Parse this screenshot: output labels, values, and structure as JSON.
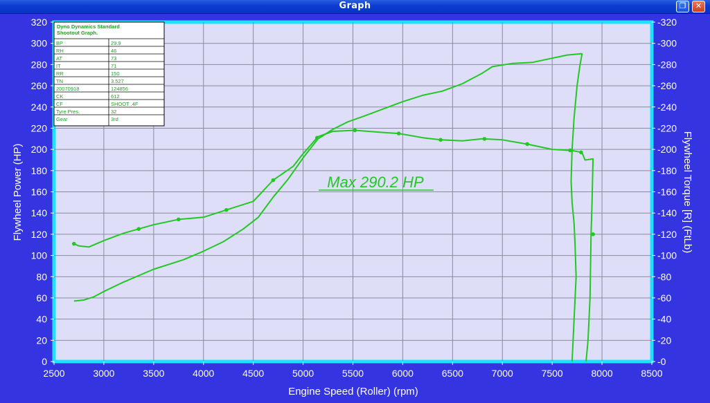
{
  "window": {
    "title": "Graph"
  },
  "chart_data": {
    "type": "line",
    "xlabel": "Engine Speed (Roller) (rpm)",
    "ylabel": "Flywheel Power (HP)",
    "y2label": "Flywheel Torque [R] (FtLb)",
    "xlim": [
      2500,
      8500
    ],
    "ylim": [
      0,
      320
    ],
    "y2lim": [
      0,
      320
    ],
    "xticks": [
      2500,
      3000,
      3500,
      4000,
      4500,
      5000,
      5500,
      6000,
      6500,
      7000,
      7500,
      8000,
      8500
    ],
    "yticks": [
      0,
      20,
      40,
      60,
      80,
      100,
      120,
      140,
      160,
      180,
      200,
      220,
      240,
      260,
      280,
      300,
      320
    ],
    "grid": true,
    "annotation": "Max 290.2 HP",
    "line_color": "#22c822",
    "series": [
      {
        "points": [
          [
            2700,
            57
          ],
          [
            2800,
            58
          ],
          [
            2900,
            61
          ],
          [
            3000,
            66
          ],
          [
            3200,
            75
          ],
          [
            3500,
            87
          ],
          [
            3800,
            96
          ],
          [
            4000,
            104
          ],
          [
            4200,
            113
          ],
          [
            4400,
            125
          ],
          [
            4550,
            136
          ],
          [
            4700,
            155
          ],
          [
            4850,
            172
          ],
          [
            5000,
            192
          ],
          [
            5150,
            210
          ],
          [
            5300,
            219
          ],
          [
            5450,
            226
          ],
          [
            5600,
            231
          ],
          [
            5800,
            238
          ],
          [
            6000,
            245
          ],
          [
            6200,
            251
          ],
          [
            6400,
            255
          ],
          [
            6600,
            262
          ],
          [
            6800,
            272
          ],
          [
            6900,
            278
          ],
          [
            7100,
            281
          ],
          [
            7300,
            282
          ],
          [
            7500,
            286
          ],
          [
            7650,
            289
          ],
          [
            7790,
            290.2
          ],
          [
            7800,
            290
          ],
          [
            7780,
            280
          ],
          [
            7750,
            260
          ],
          [
            7720,
            230
          ],
          [
            7700,
            200
          ],
          [
            7690,
            170
          ],
          [
            7700,
            150
          ],
          [
            7720,
            130
          ],
          [
            7730,
            110
          ],
          [
            7740,
            80
          ],
          [
            7720,
            40
          ],
          [
            7700,
            0
          ]
        ]
      },
      {
        "points": [
          [
            2700,
            111
          ],
          [
            2750,
            109
          ],
          [
            2850,
            108
          ],
          [
            3000,
            114
          ],
          [
            3200,
            121
          ],
          [
            3350,
            125
          ],
          [
            3500,
            129
          ],
          [
            3750,
            134
          ],
          [
            4000,
            136
          ],
          [
            4200,
            142
          ],
          [
            4500,
            151
          ],
          [
            4700,
            171
          ],
          [
            4900,
            184
          ],
          [
            5000,
            196
          ],
          [
            5150,
            212
          ],
          [
            5300,
            217
          ],
          [
            5520,
            218
          ],
          [
            5800,
            216
          ],
          [
            5960,
            215
          ],
          [
            6200,
            211
          ],
          [
            6380,
            209
          ],
          [
            6600,
            208
          ],
          [
            6800,
            210
          ],
          [
            7000,
            209
          ],
          [
            7250,
            205
          ],
          [
            7500,
            200
          ],
          [
            7700,
            199
          ],
          [
            7800,
            197
          ],
          [
            7830,
            190
          ],
          [
            7910,
            191
          ],
          [
            7900,
            150
          ],
          [
            7890,
            120
          ],
          [
            7880,
            60
          ],
          [
            7860,
            20
          ],
          [
            7840,
            0
          ]
        ]
      }
    ],
    "markers": [
      {
        "series": 1,
        "x": [
          2700,
          3350,
          3750,
          4230,
          4700,
          5140,
          5520,
          5960,
          6380,
          6820,
          7250,
          7680,
          7790,
          7910
        ]
      }
    ],
    "legend_table": {
      "header": "Dyno Dynamics Standard Shootout Graph.",
      "rows": [
        [
          "BP",
          "29.9"
        ],
        [
          "RH",
          "46"
        ],
        [
          "AT",
          "73"
        ],
        [
          "IT",
          "71"
        ],
        [
          "RR",
          "150"
        ],
        [
          "TN",
          "3.527"
        ],
        [
          "20070918",
          "124856"
        ],
        [
          "CK",
          "612"
        ],
        [
          "CF",
          "SHOOT .4F"
        ],
        [
          "Tyre Pres.",
          "32"
        ],
        [
          "Gear",
          "3rd"
        ]
      ]
    }
  }
}
